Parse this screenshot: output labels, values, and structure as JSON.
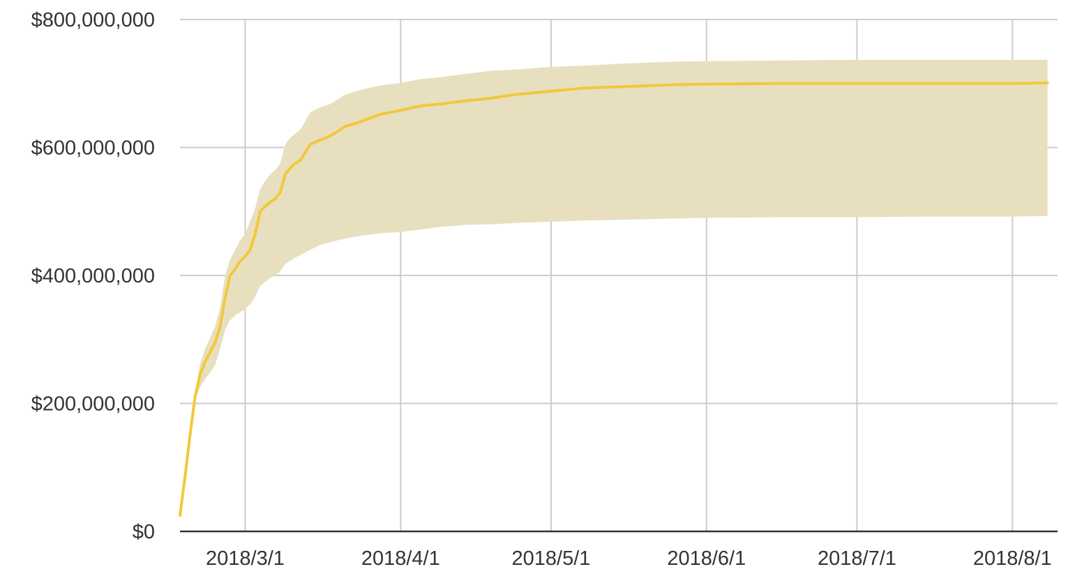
{
  "chart_data": {
    "type": "line",
    "title": "",
    "xlabel": "",
    "ylabel": "",
    "x_ticks": [
      "2018/3/1",
      "2018/4/1",
      "2018/5/1",
      "2018/6/1",
      "2018/7/1",
      "2018/8/1"
    ],
    "y_ticks": [
      "$0",
      "$200,000,000",
      "$400,000,000",
      "$600,000,000",
      "$800,000,000"
    ],
    "xlim": [
      "2018-02-16",
      "2018-08-10"
    ],
    "ylim": [
      0,
      800000000
    ],
    "grid": true,
    "colors": {
      "line": "#f2c83b",
      "band": "#e8dfbf",
      "grid": "#cccccc",
      "axis": "#333333"
    },
    "series": [
      {
        "x": [
          "2018-02-16",
          "2018-02-17",
          "2018-02-18",
          "2018-02-19",
          "2018-02-20",
          "2018-02-21",
          "2018-02-22",
          "2018-02-23",
          "2018-02-24",
          "2018-02-25",
          "2018-02-26",
          "2018-02-27",
          "2018-02-28",
          "2018-03-01",
          "2018-03-02",
          "2018-03-03",
          "2018-03-04",
          "2018-03-05",
          "2018-03-06",
          "2018-03-07",
          "2018-03-08",
          "2018-03-09",
          "2018-03-10",
          "2018-03-11",
          "2018-03-12",
          "2018-03-14",
          "2018-03-16",
          "2018-03-18",
          "2018-03-21",
          "2018-03-24",
          "2018-03-28",
          "2018-04-01",
          "2018-04-05",
          "2018-04-09",
          "2018-04-14",
          "2018-04-19",
          "2018-04-24",
          "2018-05-01",
          "2018-05-08",
          "2018-05-15",
          "2018-05-25",
          "2018-06-01",
          "2018-06-15",
          "2018-07-01",
          "2018-07-15",
          "2018-08-01",
          "2018-08-08"
        ],
        "values": [
          25000000,
          85000000,
          150000000,
          210000000,
          245000000,
          265000000,
          280000000,
          295000000,
          320000000,
          365000000,
          400000000,
          410000000,
          422000000,
          430000000,
          440000000,
          465000000,
          500000000,
          508000000,
          515000000,
          520000000,
          530000000,
          558000000,
          568000000,
          575000000,
          580000000,
          605000000,
          612000000,
          618000000,
          633000000,
          640000000,
          652000000,
          658000000,
          665000000,
          668000000,
          673000000,
          677000000,
          683000000,
          688000000,
          693000000,
          695000000,
          698000000,
          699000000,
          700000000,
          700000000,
          700000000,
          700000000,
          701000000
        ]
      },
      {
        "x": [
          "2018-02-16",
          "2018-02-17",
          "2018-02-18",
          "2018-02-19",
          "2018-02-20",
          "2018-02-21",
          "2018-02-22",
          "2018-02-23",
          "2018-02-24",
          "2018-02-25",
          "2018-02-26",
          "2018-02-27",
          "2018-02-28",
          "2018-03-01",
          "2018-03-02",
          "2018-03-03",
          "2018-03-04",
          "2018-03-05",
          "2018-03-06",
          "2018-03-07",
          "2018-03-08",
          "2018-03-09",
          "2018-03-10",
          "2018-03-11",
          "2018-03-12",
          "2018-03-14",
          "2018-03-16",
          "2018-03-18",
          "2018-03-21",
          "2018-03-24",
          "2018-03-28",
          "2018-04-01",
          "2018-04-05",
          "2018-04-09",
          "2018-04-14",
          "2018-04-19",
          "2018-04-24",
          "2018-05-01",
          "2018-05-08",
          "2018-05-15",
          "2018-05-25",
          "2018-06-01",
          "2018-06-15",
          "2018-07-01",
          "2018-07-15",
          "2018-08-01",
          "2018-08-08"
        ],
        "lower": [
          25000000,
          85000000,
          150000000,
          205000000,
          225000000,
          238000000,
          248000000,
          260000000,
          285000000,
          315000000,
          330000000,
          338000000,
          342000000,
          348000000,
          355000000,
          367000000,
          384000000,
          390000000,
          396000000,
          400000000,
          407000000,
          418000000,
          423000000,
          428000000,
          432000000,
          440000000,
          448000000,
          452000000,
          458000000,
          462000000,
          466000000,
          468000000,
          472000000,
          476000000,
          479000000,
          480000000,
          482000000,
          484000000,
          486000000,
          487000000,
          489000000,
          490000000,
          491000000,
          491000000,
          492000000,
          492000000,
          493000000
        ],
        "upper": [
          25000000,
          85000000,
          150000000,
          215000000,
          262000000,
          285000000,
          303000000,
          320000000,
          350000000,
          400000000,
          425000000,
          440000000,
          455000000,
          465000000,
          485000000,
          505000000,
          535000000,
          548000000,
          558000000,
          565000000,
          575000000,
          605000000,
          615000000,
          622000000,
          628000000,
          655000000,
          663000000,
          668000000,
          683000000,
          690000000,
          697000000,
          701000000,
          707000000,
          710000000,
          715000000,
          720000000,
          722000000,
          726000000,
          728000000,
          731000000,
          734000000,
          735000000,
          736000000,
          737000000,
          737000000,
          737000000,
          737000000
        ]
      }
    ]
  }
}
